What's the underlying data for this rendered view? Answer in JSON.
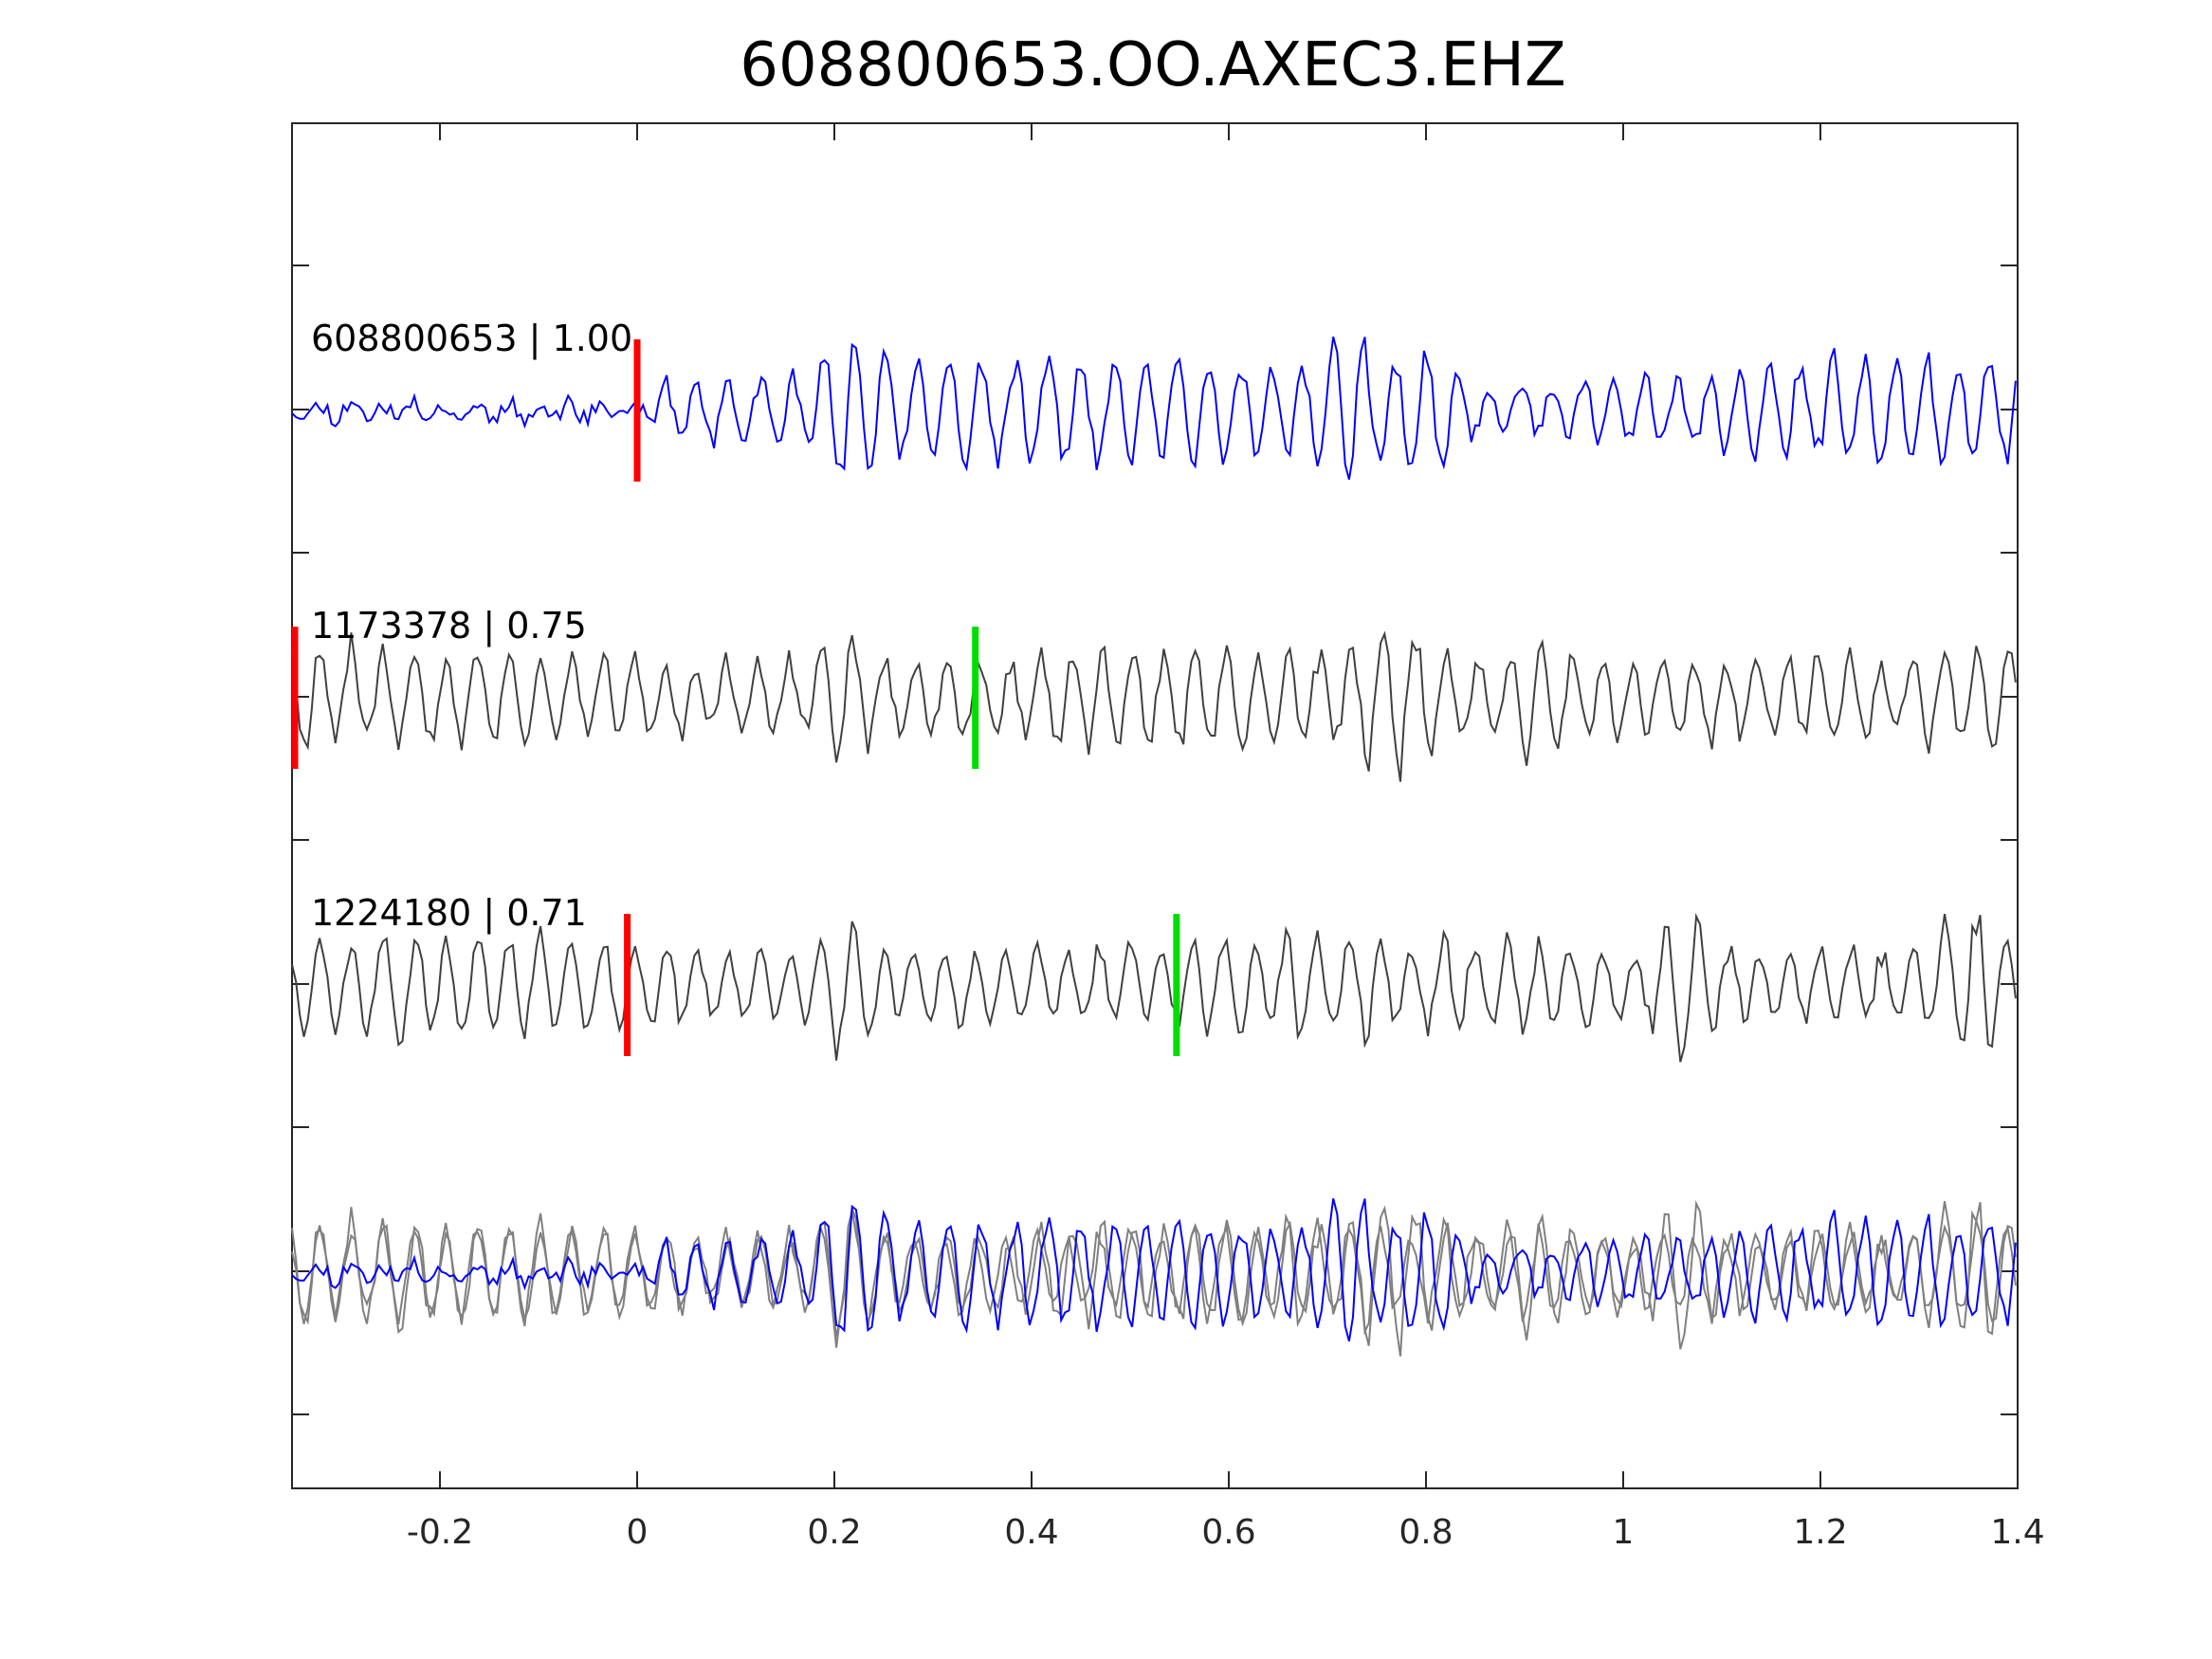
{
  "chart_data": {
    "type": "line",
    "title": "608800653.OO.AXEC3.EHZ",
    "xlabel": "",
    "ylabel": "",
    "xlim": [
      -0.35,
      1.4
    ],
    "xticks": [
      -0.2,
      0,
      0.2,
      0.4,
      0.6,
      0.8,
      1,
      1.2,
      1.4
    ],
    "xtick_labels": [
      "-0.2",
      "0",
      "0.2",
      "0.4",
      "0.6",
      "0.8",
      "1",
      "1.2",
      "1.4"
    ],
    "grid": false,
    "traces": [
      {
        "label": "608800653 | 1.00",
        "color": "#0000ff",
        "markers": [
          {
            "t": 0.0,
            "color": "#ff0000"
          }
        ],
        "waveform": {
          "seed": 11,
          "noise_amp": 0.06,
          "signal_start": 0.02,
          "signal_amp": 0.45,
          "period": 0.032,
          "bursts": [
            0.22,
            0.72,
            0.8
          ]
        }
      },
      {
        "label": "1173378 | 0.75",
        "color": "#404040",
        "markers": [
          {
            "t": -0.35,
            "color": "#ff0000"
          },
          {
            "t": 0.343,
            "color": "#00dd00"
          }
        ],
        "waveform": {
          "seed": 29,
          "noise_amp": 0.32,
          "signal_start": -0.35,
          "signal_amp": 0.42,
          "period": 0.032,
          "bursts": [
            0.21,
            0.77,
            0.92
          ]
        }
      },
      {
        "label": "1224180 | 0.71",
        "color": "#404040",
        "markers": [
          {
            "t": -0.01,
            "color": "#ff0000"
          },
          {
            "t": 0.547,
            "color": "#00dd00"
          }
        ],
        "waveform": {
          "seed": 47,
          "noise_amp": 0.28,
          "signal_start": -0.35,
          "signal_amp": 0.42,
          "period": 0.032,
          "bursts": [
            0.215,
            1.06,
            1.35
          ]
        }
      }
    ],
    "stack": {
      "colors": {
        "primary": "#0000ff",
        "others": "#808080"
      }
    }
  }
}
